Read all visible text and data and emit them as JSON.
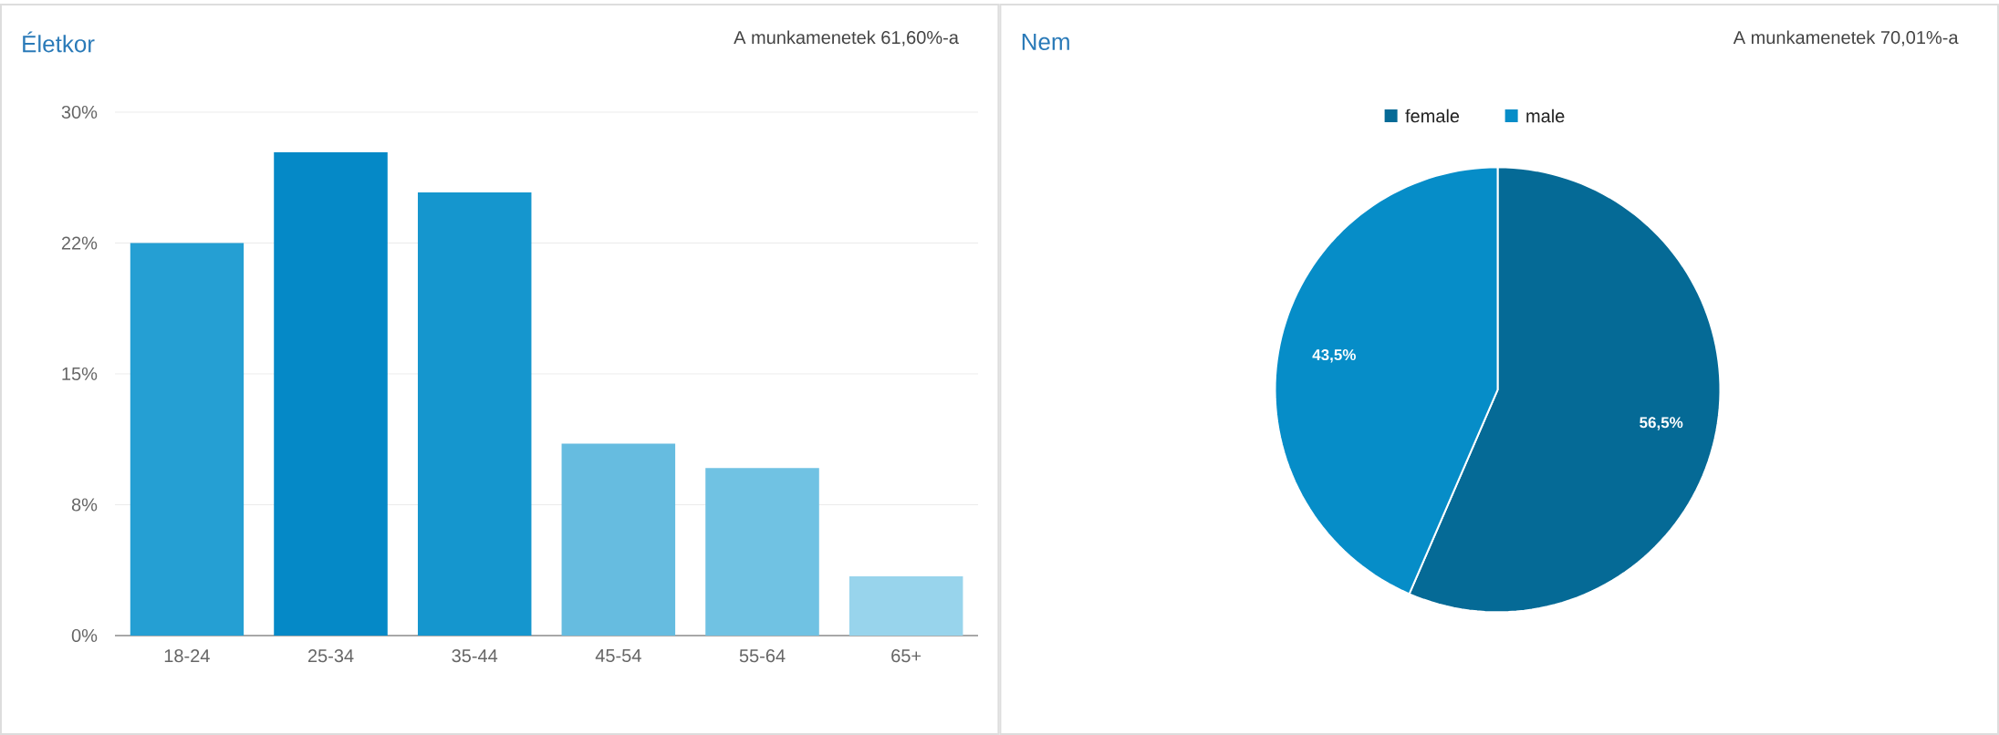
{
  "chart_data": [
    {
      "type": "bar",
      "title": "Életkor",
      "subtitle": "A munkamenetek 61,60%-a",
      "categories": [
        "18-24",
        "25-34",
        "35-44",
        "45-54",
        "55-64",
        "65+"
      ],
      "values": [
        22.5,
        27.7,
        25.4,
        11.0,
        9.6,
        3.4
      ],
      "colors": [
        "#259fd3",
        "#0589c7",
        "#1596ce",
        "#66bce0",
        "#70c2e3",
        "#98d4ec"
      ],
      "ylim": [
        0,
        30
      ],
      "yticks": [
        {
          "value": 0,
          "label": "0%"
        },
        {
          "value": 7.5,
          "label": "8%"
        },
        {
          "value": 15,
          "label": "15%"
        },
        {
          "value": 22.5,
          "label": "22%"
        },
        {
          "value": 30,
          "label": "30%"
        }
      ],
      "grid": "y"
    },
    {
      "type": "pie",
      "title": "Nem",
      "subtitle": "A munkamenetek 70,01%-a",
      "categories": [
        "female",
        "male"
      ],
      "values": [
        56.5,
        43.5
      ],
      "value_labels": [
        "56,5%",
        "43,5%"
      ],
      "colors": [
        "#056a96",
        "#068dc8"
      ],
      "legend": "top"
    }
  ]
}
